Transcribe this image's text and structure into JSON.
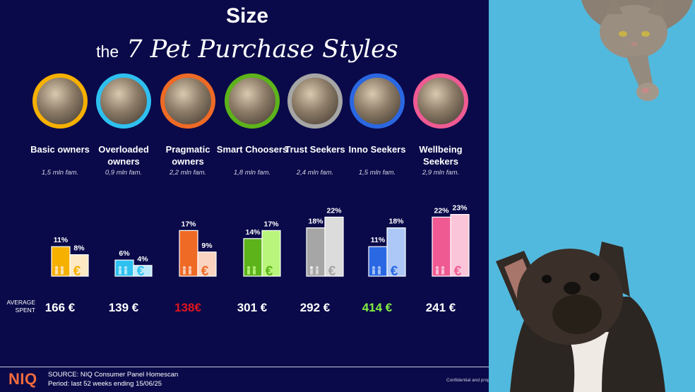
{
  "header": {
    "title": "Size",
    "subtitle_small": "the",
    "subtitle_big": "7 Pet Purchase Styles"
  },
  "avg_label": "AVERAGE SPENT",
  "segments": [
    {
      "name": "Basic owners",
      "fam": "1,5 mln fam.",
      "avg_spent": "166 €",
      "avg_color": "#ffffff",
      "color": "#f6b000",
      "light": "#fde9c4"
    },
    {
      "name": "Overloaded owners",
      "fam": "0,9 mln fam.",
      "avg_spent": "139 €",
      "avg_color": "#ffffff",
      "color": "#2ec0f0",
      "light": "#bdeafb"
    },
    {
      "name": "Pragmatic owners",
      "fam": "2,2 mln fam.",
      "avg_spent": "138€",
      "avg_color": "#e2141c",
      "color": "#ef6a25",
      "light": "#fad4c1"
    },
    {
      "name": "Smart Choosers",
      "fam": "1,8 mln fam.",
      "avg_spent": "301 €",
      "avg_color": "#ffffff",
      "color": "#5db31a",
      "light": "#b9f57b"
    },
    {
      "name": "Trust Seekers",
      "fam": "2,4 mln fam.",
      "avg_spent": "292 €",
      "avg_color": "#ffffff",
      "color": "#a6a6a6",
      "light": "#dcdcdc"
    },
    {
      "name": "Inno Seekers",
      "fam": "1,5 mln fam.",
      "avg_spent": "414 €",
      "avg_color": "#84f043",
      "color": "#2a67e2",
      "light": "#adc8f6"
    },
    {
      "name": "Wellbeing Seekers",
      "fam": "2,9 mln fam.",
      "avg_spent": "241 €",
      "avg_color": "#ffffff",
      "color": "#ef5a93",
      "light": "#fbc5d9"
    }
  ],
  "chart_data": {
    "type": "bar",
    "categories": [
      "Basic owners",
      "Overloaded owners",
      "Pragmatic owners",
      "Smart Choosers",
      "Trust Seekers",
      "Inno Seekers",
      "Wellbeing Seekers"
    ],
    "series": [
      {
        "values": [
          11,
          6,
          17,
          14,
          18,
          11,
          22
        ],
        "labels": [
          "11%",
          "6%",
          "17%",
          "14%",
          "18%",
          "11%",
          "22%"
        ]
      },
      {
        "values": [
          8,
          4,
          9,
          17,
          22,
          18,
          23
        ],
        "labels": [
          "8%",
          "4%",
          "9%",
          "17%",
          "22%",
          "18%",
          "23%"
        ]
      }
    ],
    "ylim": [
      0,
      25
    ]
  },
  "footer": {
    "logo": "NIQ",
    "source_line1": "SOURCE: NIQ Consumer Panel Homescan",
    "source_line2": "Period: last 52 weeks ending 15/06/25",
    "confidential": "Confidential and proprietary"
  }
}
